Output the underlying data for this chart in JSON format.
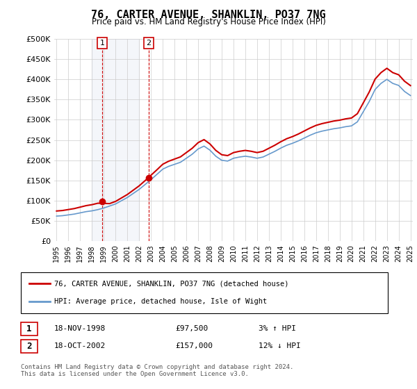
{
  "title": "76, CARTER AVENUE, SHANKLIN, PO37 7NG",
  "subtitle": "Price paid vs. HM Land Registry's House Price Index (HPI)",
  "footer": "Contains HM Land Registry data © Crown copyright and database right 2024.\nThis data is licensed under the Open Government Licence v3.0.",
  "legend_line1": "76, CARTER AVENUE, SHANKLIN, PO37 7NG (detached house)",
  "legend_line2": "HPI: Average price, detached house, Isle of Wight",
  "transaction1_label": "1",
  "transaction1_date": "18-NOV-1998",
  "transaction1_price": "£97,500",
  "transaction1_hpi": "3% ↑ HPI",
  "transaction2_label": "2",
  "transaction2_date": "18-OCT-2002",
  "transaction2_price": "£157,000",
  "transaction2_hpi": "12% ↓ HPI",
  "ylabel": "",
  "background_color": "#ffffff",
  "plot_bg_color": "#ffffff",
  "grid_color": "#cccccc",
  "red_color": "#cc0000",
  "blue_color": "#6699cc",
  "hpi_start_year": 1995,
  "hpi_end_year": 2025,
  "ylim_min": 0,
  "ylim_max": 500000,
  "yticks": [
    0,
    50000,
    100000,
    150000,
    200000,
    250000,
    300000,
    350000,
    400000,
    450000,
    500000
  ],
  "ytick_labels": [
    "£0",
    "£50K",
    "£100K",
    "£150K",
    "£200K",
    "£250K",
    "£300K",
    "£350K",
    "£400K",
    "£450K",
    "£500K"
  ],
  "hpi_years": [
    1995,
    1995.5,
    1996,
    1996.5,
    1997,
    1997.5,
    1998,
    1998.5,
    1999,
    1999.5,
    2000,
    2000.5,
    2001,
    2001.5,
    2002,
    2002.5,
    2003,
    2003.5,
    2004,
    2004.5,
    2005,
    2005.5,
    2006,
    2006.5,
    2007,
    2007.5,
    2008,
    2008.5,
    2009,
    2009.5,
    2010,
    2010.5,
    2011,
    2011.5,
    2012,
    2012.5,
    2013,
    2013.5,
    2014,
    2014.5,
    2015,
    2015.5,
    2016,
    2016.5,
    2017,
    2017.5,
    2018,
    2018.5,
    2019,
    2019.5,
    2020,
    2020.5,
    2021,
    2021.5,
    2022,
    2022.5,
    2023,
    2023.5,
    2024,
    2024.5,
    2025
  ],
  "hpi_values": [
    62000,
    63000,
    65000,
    67000,
    70000,
    73000,
    75000,
    78000,
    82000,
    87000,
    92000,
    100000,
    108000,
    118000,
    128000,
    140000,
    152000,
    165000,
    178000,
    185000,
    190000,
    195000,
    205000,
    215000,
    228000,
    235000,
    225000,
    210000,
    200000,
    198000,
    205000,
    208000,
    210000,
    208000,
    205000,
    208000,
    215000,
    222000,
    230000,
    237000,
    242000,
    248000,
    255000,
    262000,
    268000,
    272000,
    275000,
    278000,
    280000,
    283000,
    285000,
    295000,
    320000,
    345000,
    375000,
    390000,
    400000,
    390000,
    385000,
    370000,
    360000
  ],
  "transaction1_year": 1998.88,
  "transaction1_value": 97500,
  "transaction2_year": 2002.79,
  "transaction2_value": 157000,
  "transaction1_marker_x": 1998.88,
  "transaction2_marker_x": 2002.79,
  "shade1_x1": 1998.0,
  "shade1_x2": 2002.0,
  "xtick_years": [
    1995,
    1996,
    1997,
    1998,
    1999,
    2000,
    2001,
    2002,
    2003,
    2004,
    2005,
    2006,
    2007,
    2008,
    2009,
    2010,
    2011,
    2012,
    2013,
    2014,
    2015,
    2016,
    2017,
    2018,
    2019,
    2020,
    2021,
    2022,
    2023,
    2024,
    2025
  ]
}
